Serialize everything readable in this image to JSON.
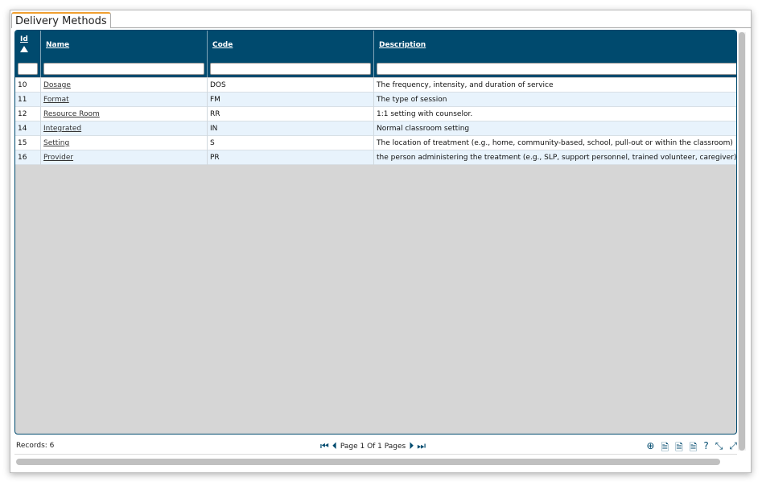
{
  "tab": {
    "label": "Delivery Methods"
  },
  "columns": [
    {
      "label": "Id"
    },
    {
      "label": "Name"
    },
    {
      "label": "Code"
    },
    {
      "label": "Description"
    }
  ],
  "rows": [
    {
      "id": "10",
      "name": "Dosage",
      "code": "DOS",
      "description": "The frequency, intensity, and duration of service"
    },
    {
      "id": "11",
      "name": "Format",
      "code": "FM",
      "description": "The type of session"
    },
    {
      "id": "12",
      "name": "Resource Room",
      "code": "RR",
      "description": "1:1 setting with counselor."
    },
    {
      "id": "14",
      "name": "Integrated",
      "code": "IN",
      "description": "Normal classroom setting"
    },
    {
      "id": "15",
      "name": "Setting",
      "code": "S",
      "description": "The location of treatment (e.g., home, community-based, school, pull-out or within the classroom)"
    },
    {
      "id": "16",
      "name": "Provider",
      "code": "PR",
      "description": "the person administering the treatment (e.g., SLP, support personnel, trained volunteer, caregiver)"
    }
  ],
  "footer": {
    "records": "Records: 6",
    "page": "Page 1 Of 1 Pages"
  },
  "sort": {
    "column": "Id",
    "direction": "ascending"
  },
  "colors": {
    "header": "#004a6e",
    "tab_accent": "#f0a030",
    "alt_row": "#e8f3fc"
  }
}
